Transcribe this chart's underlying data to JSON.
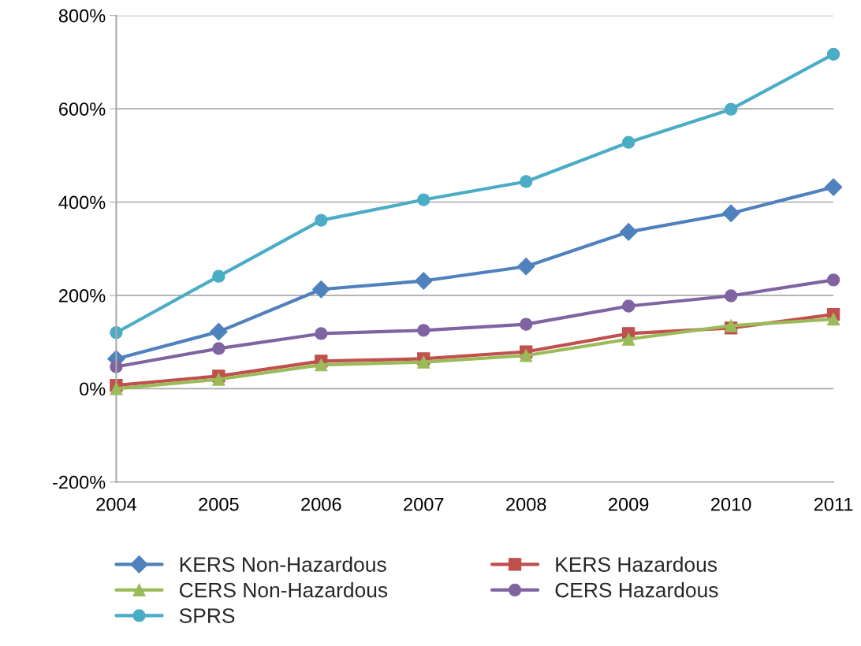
{
  "chart_data": {
    "type": "line",
    "x": [
      2004,
      2005,
      2006,
      2007,
      2008,
      2009,
      2010,
      2011
    ],
    "xlim": [
      2004,
      2011
    ],
    "xticks": [
      2004,
      2005,
      2006,
      2007,
      2008,
      2009,
      2010,
      2011
    ],
    "ylim": [
      -200,
      800
    ],
    "yticks": [
      {
        "value": -200,
        "label": "-200%"
      },
      {
        "value": 0,
        "label": "0%"
      },
      {
        "value": 200,
        "label": "200%"
      },
      {
        "value": 400,
        "label": "400%"
      },
      {
        "value": 600,
        "label": "600%"
      },
      {
        "value": 800,
        "label": "800%"
      }
    ],
    "grid": "y",
    "legend": "bottom",
    "line_style": "solid",
    "series": [
      {
        "name": "KERS Non-Hazardous",
        "color": "#4f81bd",
        "marker": "diamond",
        "values": [
          64,
          122,
          213,
          231,
          262,
          336,
          376,
          432
        ]
      },
      {
        "name": "CERS Non-Hazardous",
        "color": "#9bbb59",
        "marker": "triangle",
        "values": [
          0,
          20,
          51,
          57,
          71,
          106,
          135,
          149
        ]
      },
      {
        "name": "SPRS",
        "color": "#4bacc6",
        "marker": "circle",
        "values": [
          120,
          241,
          361,
          405,
          444,
          528,
          599,
          717
        ]
      },
      {
        "name": "KERS Hazardous",
        "color": "#c0504d",
        "marker": "square",
        "values": [
          7,
          27,
          59,
          64,
          79,
          118,
          130,
          159
        ]
      },
      {
        "name": "CERS Hazardous",
        "color": "#8064a2",
        "marker": "circle",
        "values": [
          47,
          86,
          118,
          125,
          138,
          177,
          199,
          233
        ]
      }
    ]
  }
}
